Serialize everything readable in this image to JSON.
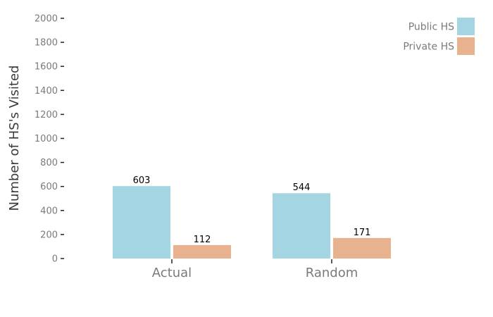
{
  "chart_data": {
    "type": "bar",
    "title": "",
    "xlabel": "",
    "ylabel": "Number of HS's Visited",
    "ylim": [
      0,
      2000
    ],
    "yticks": [
      0,
      200,
      400,
      600,
      800,
      1000,
      1200,
      1400,
      1600,
      1800,
      2000
    ],
    "categories": [
      "Actual",
      "Random"
    ],
    "series": [
      {
        "name": "Public HS",
        "color": "#a3d5e2",
        "values": [
          603,
          544
        ]
      },
      {
        "name": "Private HS",
        "color": "#e9b28f",
        "values": [
          112,
          171
        ]
      }
    ],
    "grid": false,
    "legend_position": "top-right"
  }
}
